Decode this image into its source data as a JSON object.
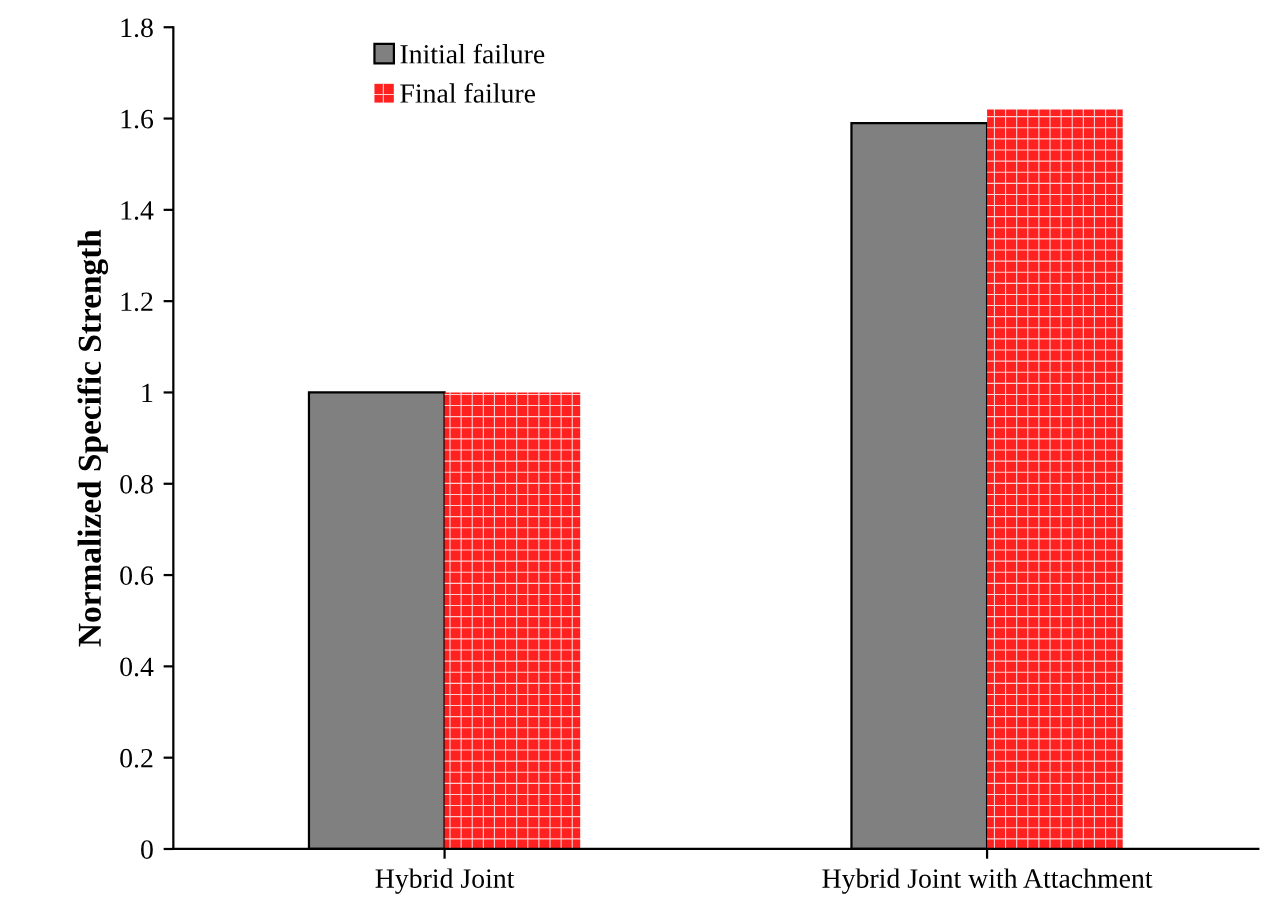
{
  "chart_data": {
    "type": "bar",
    "ylabel": "Normalized Specific Strength",
    "categories": [
      "Hybrid Joint",
      "Hybrid Joint with Attachment"
    ],
    "series": [
      {
        "name": "Initial failure",
        "color": "#808080",
        "values": [
          1.0,
          1.59
        ]
      },
      {
        "name": "Final failure",
        "color": "#ff2020",
        "values": [
          1.0,
          1.62
        ]
      }
    ],
    "ylim": [
      0,
      1.8
    ],
    "yticks": [
      0,
      0.2,
      0.4,
      0.6,
      0.8,
      1,
      1.2,
      1.4,
      1.6,
      1.8
    ],
    "grid": false,
    "legend": "top left"
  }
}
